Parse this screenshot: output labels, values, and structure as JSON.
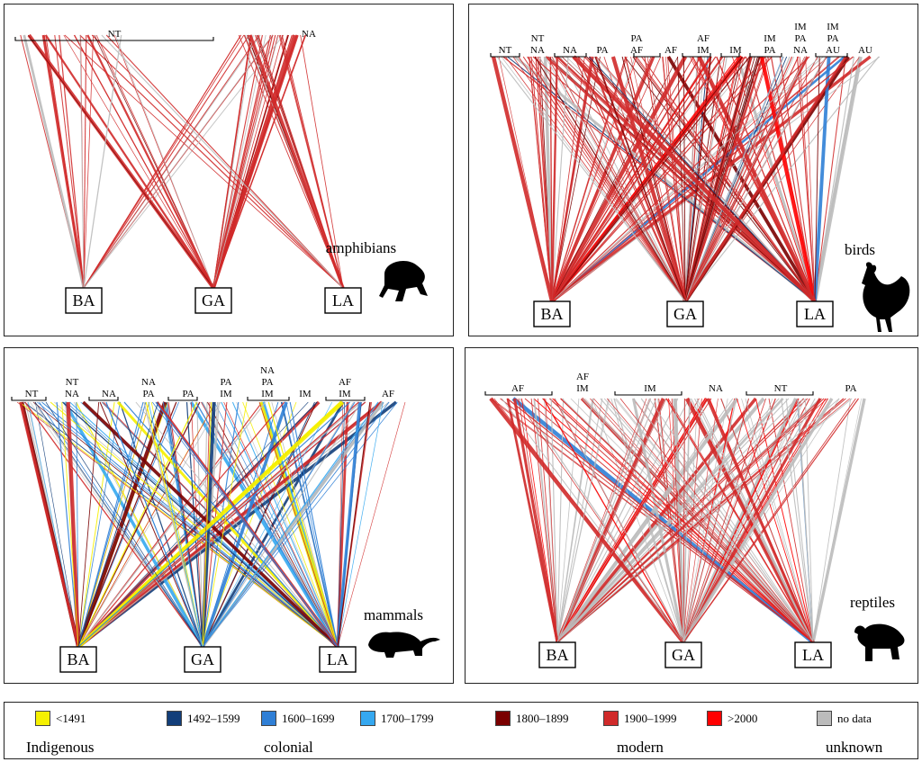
{
  "colors": {
    "indigenous": "#f5f000",
    "col1": "#123e7a",
    "col2": "#2f7fd6",
    "col3": "#35a8f0",
    "mod1": "#7a0000",
    "mod2": "#d02a2a",
    "mod3": "#ff0000",
    "unknown": "#bbbbbb"
  },
  "sites": {
    "ba": "BA",
    "ga": "GA",
    "la": "LA"
  },
  "panels": {
    "amphibians": {
      "taxon": "amphibians",
      "regions": [
        {
          "lines": [
            "NT"
          ]
        },
        {
          "lines": [
            "NA"
          ]
        }
      ]
    },
    "birds": {
      "taxon": "birds",
      "regions": [
        {
          "lines": [
            "NT"
          ]
        },
        {
          "lines": [
            "NT",
            "NA"
          ]
        },
        {
          "lines": [
            "NA"
          ]
        },
        {
          "lines": [
            "PA"
          ]
        },
        {
          "lines": [
            "PA",
            "AF"
          ]
        },
        {
          "lines": [
            "AF"
          ]
        },
        {
          "lines": [
            "AF",
            "IM"
          ]
        },
        {
          "lines": [
            "IM"
          ]
        },
        {
          "lines": [
            "IM",
            "PA"
          ]
        },
        {
          "lines": [
            "IM",
            "PA",
            "NA"
          ]
        },
        {
          "lines": [
            "IM",
            "PA",
            "AU"
          ]
        },
        {
          "lines": [
            "AU"
          ]
        }
      ]
    },
    "mammals": {
      "taxon": "mammals",
      "regions": [
        {
          "lines": [
            "NT"
          ]
        },
        {
          "lines": [
            "NT",
            "NA"
          ]
        },
        {
          "lines": [
            "NA"
          ]
        },
        {
          "lines": [
            "NA",
            "PA"
          ]
        },
        {
          "lines": [
            "PA"
          ]
        },
        {
          "lines": [
            "PA",
            "IM"
          ]
        },
        {
          "lines": [
            "NA",
            "PA",
            "IM"
          ]
        },
        {
          "lines": [
            "IM"
          ]
        },
        {
          "lines": [
            "AF",
            "IM"
          ]
        },
        {
          "lines": [
            "AF"
          ]
        }
      ]
    },
    "reptiles": {
      "taxon": "reptiles",
      "regions": [
        {
          "lines": [
            "AF"
          ]
        },
        {
          "lines": [
            "AF",
            "IM"
          ]
        },
        {
          "lines": [
            "IM"
          ]
        },
        {
          "lines": [
            "NA"
          ]
        },
        {
          "lines": [
            "NT"
          ]
        },
        {
          "lines": [
            "PA"
          ]
        }
      ]
    }
  },
  "legend": {
    "items": [
      "<1491",
      "1492–1599",
      "1600–1699",
      "1700–1799",
      "1800–1899",
      "1900–1999",
      ">2000",
      "no data"
    ],
    "groups": [
      "Indigenous",
      "colonial",
      "modern",
      "unknown"
    ]
  }
}
